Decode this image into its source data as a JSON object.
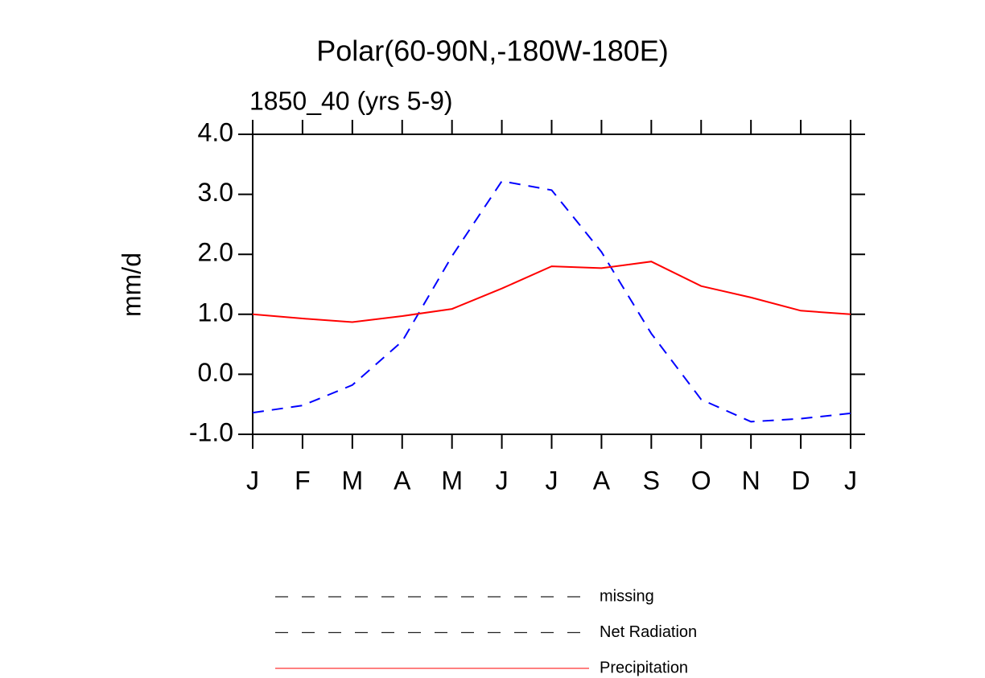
{
  "chart_data": {
    "type": "line",
    "title": "Polar(60-90N,-180W-180E)",
    "subtitle": "1850_40 (yrs 5-9)",
    "y_label": "mm/d",
    "categories": [
      "J",
      "F",
      "M",
      "A",
      "M",
      "J",
      "J",
      "A",
      "S",
      "O",
      "N",
      "D",
      "J"
    ],
    "series": [
      {
        "name": "missing",
        "color": "#000000",
        "dash": true,
        "values": [
          null,
          null,
          null,
          null,
          null,
          null,
          null,
          null,
          null,
          null,
          null,
          null,
          null
        ]
      },
      {
        "name": "Net Radiation",
        "color": "#0000ff",
        "dash": true,
        "values": [
          -0.64,
          -0.52,
          -0.18,
          0.55,
          1.97,
          3.22,
          3.07,
          2.04,
          0.68,
          -0.42,
          -0.79,
          -0.74,
          -0.65
        ]
      },
      {
        "name": "Precipitation",
        "color": "#ff0000",
        "dash": false,
        "values": [
          1.0,
          0.93,
          0.87,
          0.97,
          1.09,
          1.43,
          1.8,
          1.77,
          1.88,
          1.47,
          1.28,
          1.06,
          1.0
        ]
      }
    ],
    "ylim": [
      -1.0,
      4.0
    ],
    "yticks": [
      {
        "value": -1,
        "label": "-1.0"
      },
      {
        "value": 0,
        "label": "0.0"
      },
      {
        "value": 1,
        "label": "1.0"
      },
      {
        "value": 2,
        "label": "2.0"
      },
      {
        "value": 3,
        "label": "3.0"
      },
      {
        "value": 4,
        "label": "4.0"
      }
    ],
    "grid": false
  }
}
